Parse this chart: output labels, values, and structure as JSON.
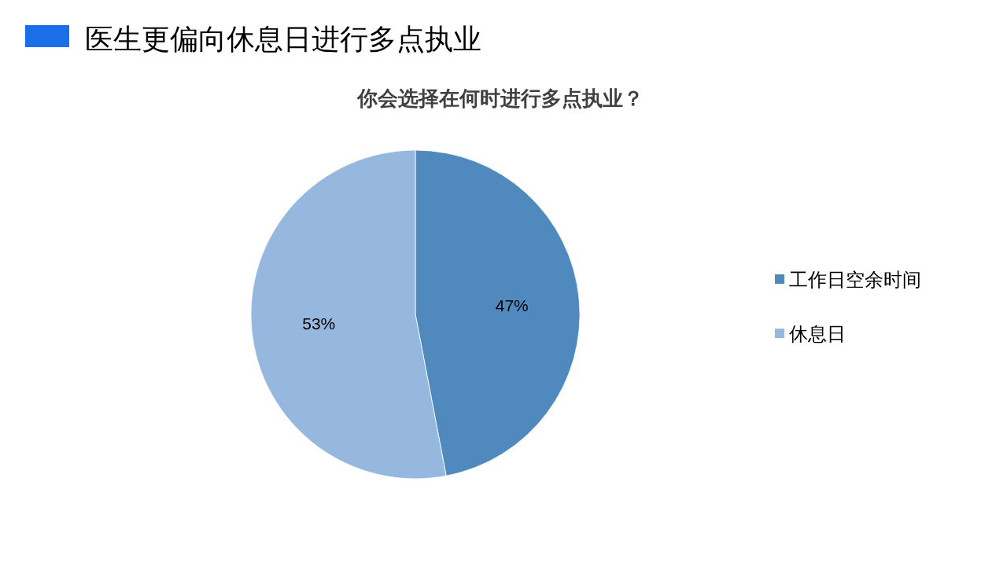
{
  "chart_data": {
    "type": "pie",
    "title": "医生更偏向休息日进行多点执业",
    "subtitle": "你会选择在何时进行多点执业？",
    "categories": [
      "工作日空余时间",
      "休息日"
    ],
    "values": [
      47,
      53
    ],
    "colors": [
      "#4f89bd",
      "#97b8de"
    ],
    "value_labels": [
      "47%",
      "53%"
    ],
    "legend": "right"
  }
}
